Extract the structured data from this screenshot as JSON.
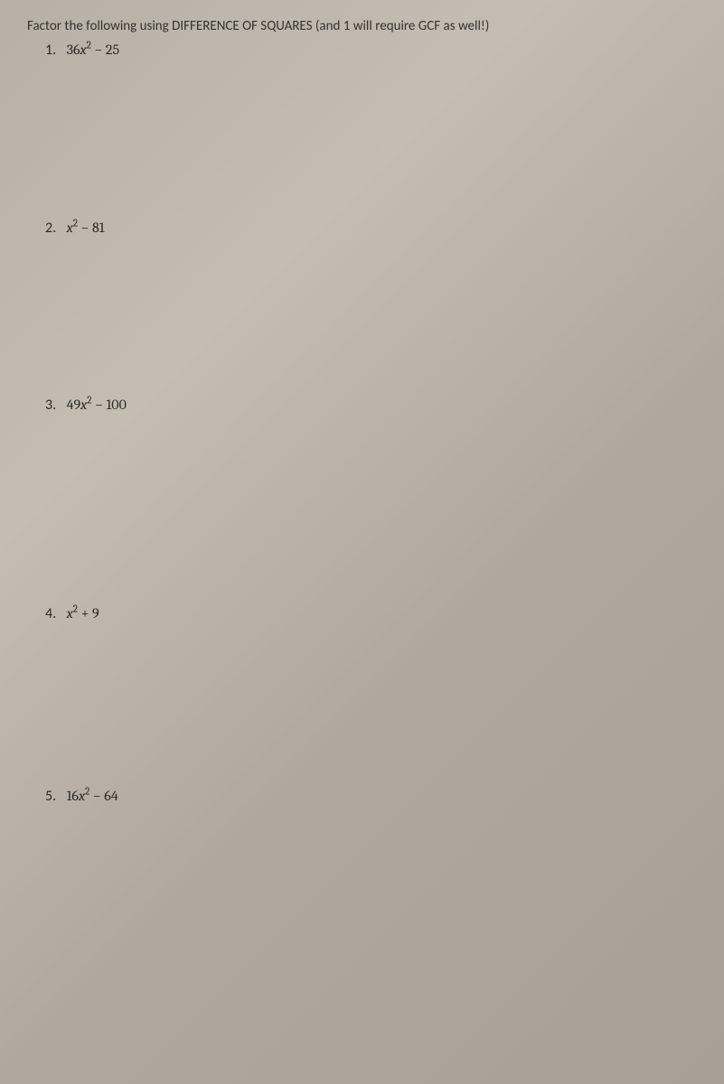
{
  "instructions": "Factor the following using DIFFERENCE OF SQUARES (and 1 will require GCF as well!)",
  "problems": [
    {
      "num": "1.",
      "coef": "36",
      "var": "x",
      "exp": "2",
      "op": "−",
      "const": "25"
    },
    {
      "num": "2.",
      "coef": "",
      "var": "x",
      "exp": "2",
      "op": "−",
      "const": "81"
    },
    {
      "num": "3.",
      "coef": "49",
      "var": "x",
      "exp": "2",
      "op": "−",
      "const": "100"
    },
    {
      "num": "4.",
      "coef": "",
      "var": "x",
      "exp": "2",
      "op": "+",
      "const": "9"
    },
    {
      "num": "5.",
      "coef": "16",
      "var": "x",
      "exp": "2",
      "op": "−",
      "const": "64"
    }
  ],
  "colors": {
    "text": "#2a2a2a",
    "instructions_text": "#333333",
    "background": "#b8b0a5"
  },
  "typography": {
    "instructions_fontsize": 15,
    "problem_fontsize": 16,
    "font_family": "Calibri, Arial, sans-serif",
    "math_font_family": "Cambria Math, Cambria, serif"
  }
}
